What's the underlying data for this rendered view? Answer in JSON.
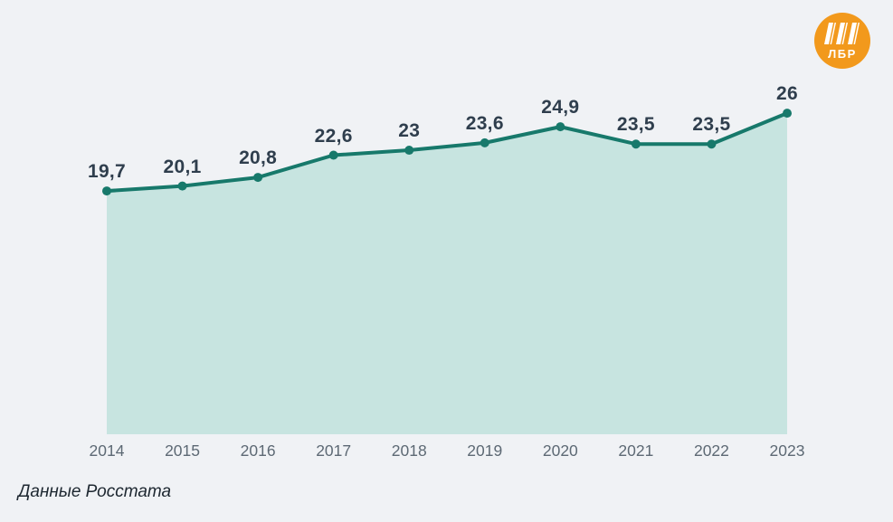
{
  "chart_data": {
    "type": "area",
    "categories": [
      "2014",
      "2015",
      "2016",
      "2017",
      "2018",
      "2019",
      "2020",
      "2021",
      "2022",
      "2023"
    ],
    "values": [
      19.7,
      20.1,
      20.8,
      22.6,
      23,
      23.6,
      24.9,
      23.5,
      23.5,
      26
    ],
    "value_labels": [
      "19,7",
      "20,1",
      "20,8",
      "22,6",
      "23",
      "23,6",
      "24,9",
      "23,5",
      "23,5",
      "26"
    ],
    "title": "",
    "xlabel": "",
    "ylabel": "",
    "ylim": [
      0,
      27
    ],
    "grid": false,
    "legend": false,
    "colors": {
      "line": "#17796b",
      "fill": "#c7e4e0",
      "point": "#17796b",
      "value_label": "#2f3e4d",
      "axis_label": "#5d6974",
      "background": "#f0f2f5"
    }
  },
  "source_note": "Данные Росстата",
  "logo": {
    "text": "ЛБР",
    "background": "#f2991c",
    "stripes_color": "#ffffff"
  }
}
